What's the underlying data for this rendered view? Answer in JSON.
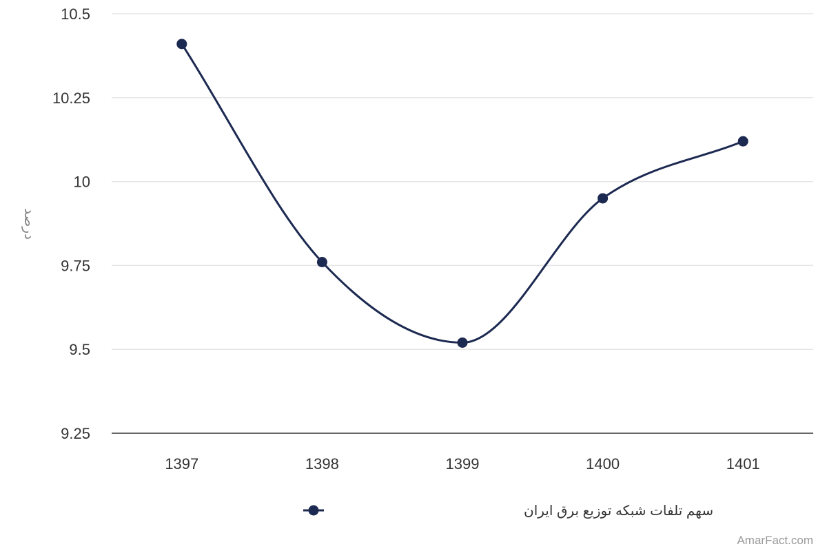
{
  "chart_data": {
    "type": "line",
    "title": "",
    "xlabel": "",
    "ylabel": "درصد",
    "categories": [
      "1397",
      "1398",
      "1399",
      "1400",
      "1401"
    ],
    "series": [
      {
        "name": "سهم تلفات شبکه توزیع برق ایران",
        "values": [
          10.41,
          9.76,
          9.52,
          9.95,
          10.12
        ],
        "color": "#1c2951"
      }
    ],
    "ylim": [
      9.25,
      10.5
    ],
    "yticks": [
      9.25,
      9.5,
      9.75,
      10,
      10.25,
      10.5
    ],
    "ytick_labels": [
      "9.25",
      "9.5",
      "9.75",
      "10",
      "10.25",
      "10.5"
    ],
    "grid": true,
    "legend_position": "bottom",
    "smooth": true
  },
  "credit": "AmarFact.com",
  "colors": {
    "series": "#1c2951",
    "grid": "#e6e6e6",
    "axis": "#333333"
  }
}
